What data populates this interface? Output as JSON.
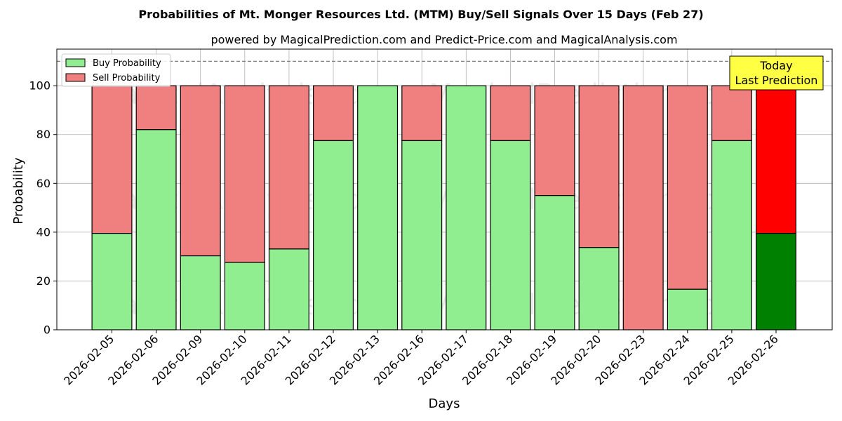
{
  "chart_data": {
    "type": "bar",
    "stacked": true,
    "title": "Probabilities of Mt. Monger Resources Ltd. (MTM) Buy/Sell Signals Over 15 Days (Feb 27)",
    "subtitle": "powered by MagicalPrediction.com and Predict-Price.com and MagicalAnalysis.com",
    "xlabel": "Days",
    "ylabel": "Probability",
    "ylim": [
      0,
      115
    ],
    "yticks": [
      0,
      20,
      40,
      60,
      80,
      100
    ],
    "grid": true,
    "legend_position": "top-left",
    "reference_line": {
      "y": 110,
      "style": "dashed"
    },
    "categories": [
      "2026-02-05",
      "2026-02-06",
      "2026-02-09",
      "2026-02-10",
      "2026-02-11",
      "2026-02-12",
      "2026-02-13",
      "2026-02-16",
      "2026-02-17",
      "2026-02-18",
      "2026-02-19",
      "2026-02-20",
      "2026-02-23",
      "2026-02-24",
      "2026-02-25",
      "2026-02-26"
    ],
    "series": [
      {
        "name": "Buy Probability",
        "color": "#90ee90",
        "values": [
          39.5,
          82,
          30.3,
          27.6,
          33.1,
          77.5,
          100,
          77.5,
          100,
          77.5,
          55,
          33.7,
          0,
          16.6,
          77.5,
          39.5
        ]
      },
      {
        "name": "Sell Probability",
        "color": "#f08080",
        "values": [
          60.5,
          18,
          69.7,
          72.4,
          66.9,
          22.5,
          0,
          22.5,
          0,
          22.5,
          45,
          66.3,
          100,
          83.4,
          22.5,
          60.5
        ]
      }
    ],
    "highlight": {
      "index": 15,
      "buy_color": "#008000",
      "sell_color": "#ff0000"
    },
    "annotation": {
      "lines": [
        "Today",
        "Last Prediction"
      ],
      "background": "#ffff44"
    },
    "watermarks": [
      "MagicalAnalysis.com",
      "MagicalPrediction.com"
    ]
  }
}
